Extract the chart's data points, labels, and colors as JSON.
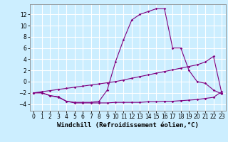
{
  "bg_color": "#cceeff",
  "grid_color": "#ffffff",
  "line_color": "#800080",
  "xlabel": "Windchill (Refroidissement éolien,°C)",
  "xlabel_fontsize": 6.5,
  "tick_fontsize": 5.5,
  "xlim": [
    -0.5,
    23.5
  ],
  "ylim": [
    -5.2,
    13.8
  ],
  "yticks": [
    -4,
    -2,
    0,
    2,
    4,
    6,
    8,
    10,
    12
  ],
  "xticks": [
    0,
    1,
    2,
    3,
    4,
    5,
    6,
    7,
    8,
    9,
    10,
    11,
    12,
    13,
    14,
    15,
    16,
    17,
    18,
    19,
    20,
    21,
    22,
    23
  ],
  "series1_x": [
    0,
    1,
    2,
    3,
    4,
    5,
    6,
    7,
    8,
    9,
    10,
    11,
    12,
    13,
    14,
    15,
    16,
    17,
    18,
    19,
    20,
    21,
    22,
    23
  ],
  "series1_y": [
    -2.0,
    -2.0,
    -2.5,
    -2.8,
    -3.5,
    -3.8,
    -3.8,
    -3.8,
    -3.8,
    -3.8,
    -3.7,
    -3.7,
    -3.7,
    -3.7,
    -3.6,
    -3.6,
    -3.5,
    -3.5,
    -3.4,
    -3.3,
    -3.2,
    -3.0,
    -2.8,
    -1.8
  ],
  "series2_x": [
    0,
    1,
    2,
    3,
    4,
    5,
    6,
    7,
    8,
    9,
    10,
    11,
    12,
    13,
    14,
    15,
    16,
    17,
    18,
    19,
    20,
    21,
    22,
    23
  ],
  "series2_y": [
    -2.0,
    -1.8,
    -1.6,
    -1.4,
    -1.2,
    -1.0,
    -0.8,
    -0.6,
    -0.4,
    -0.2,
    0.0,
    0.3,
    0.6,
    0.9,
    1.2,
    1.5,
    1.8,
    2.1,
    2.4,
    2.7,
    3.0,
    3.5,
    4.5,
    -2.0
  ],
  "series3_x": [
    0,
    1,
    2,
    3,
    4,
    5,
    6,
    7,
    8,
    9,
    10,
    11,
    12,
    13,
    14,
    15,
    16,
    17,
    18,
    19,
    20,
    21,
    22,
    23
  ],
  "series3_y": [
    -2.0,
    -2.0,
    -2.5,
    -2.7,
    -3.5,
    -3.7,
    -3.7,
    -3.7,
    -3.5,
    -1.5,
    3.5,
    7.5,
    11.0,
    12.0,
    12.5,
    13.0,
    13.0,
    6.0,
    6.0,
    2.0,
    0.0,
    -0.3,
    -1.5,
    -2.2
  ]
}
